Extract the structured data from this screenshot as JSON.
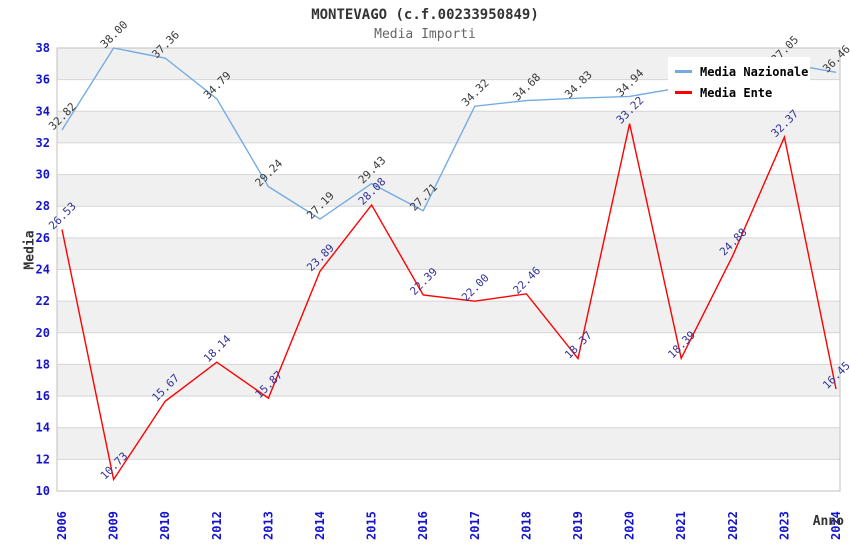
{
  "title": "MONTEVAGO (c.f.00233950849)",
  "subtitle": "Media Importi",
  "axes": {
    "x_label": "Anno",
    "y_label": "Media"
  },
  "theme": {
    "tick_color": "#1414cc",
    "grid_color": "#d6d6d6",
    "band_color": "#f0f0f0",
    "border_color": "#c2c2c2",
    "title_color": "#333333",
    "subtitle_color": "#666666",
    "background": "#ffffff",
    "legend_bg": "#ffffff"
  },
  "chart_data": {
    "type": "line",
    "title": "MONTEVAGO (c.f.00233950849)",
    "subtitle": "Media Importi",
    "xlabel": "Anno",
    "ylabel": "Media",
    "ylim": [
      10,
      38
    ],
    "y_ticks": [
      38,
      36,
      34,
      32,
      30,
      28,
      26,
      24,
      22,
      20,
      18,
      16,
      14,
      12,
      10
    ],
    "grid": "horizontal-bands-alternating",
    "legend_position": "top-right",
    "categories": [
      "2006",
      "2009",
      "2010",
      "2012",
      "2013",
      "2014",
      "2015",
      "2016",
      "2017",
      "2018",
      "2019",
      "2020",
      "2021",
      "2022",
      "2023",
      "2024"
    ],
    "series": [
      {
        "name": "Media Nazionale",
        "color": "#74ace2",
        "label_color": "#3a3a3a",
        "values": [
          32.82,
          38.0,
          37.36,
          34.79,
          29.24,
          27.19,
          29.43,
          27.71,
          34.32,
          34.68,
          34.83,
          34.94,
          35.5,
          36.3,
          37.05,
          36.46
        ],
        "labels": [
          "32.82",
          "38.00",
          "37.36",
          "34.79",
          "29.24",
          "27.19",
          "29.43",
          "27.71",
          "34.32",
          "34.68",
          "34.83",
          "34.94",
          "",
          "",
          "37.05",
          "36.46"
        ],
        "note": "labels for 2021 and 2022 are hidden behind the legend box; those two values estimated from line position"
      },
      {
        "name": "Media Ente",
        "color": "#ff0000",
        "label_color": "#333399",
        "values": [
          26.53,
          10.73,
          15.67,
          18.14,
          15.87,
          23.89,
          28.08,
          22.39,
          22.0,
          22.46,
          18.37,
          33.22,
          18.39,
          24.88,
          32.37,
          16.45
        ],
        "labels": [
          "26.53",
          "10.73",
          "15.67",
          "18.14",
          "15.87",
          "23.89",
          "28.08",
          "22.39",
          "22.00",
          "22.46",
          "18.37",
          "33.22",
          "18.39",
          "24.88",
          "32.37",
          "16.45"
        ]
      }
    ]
  }
}
